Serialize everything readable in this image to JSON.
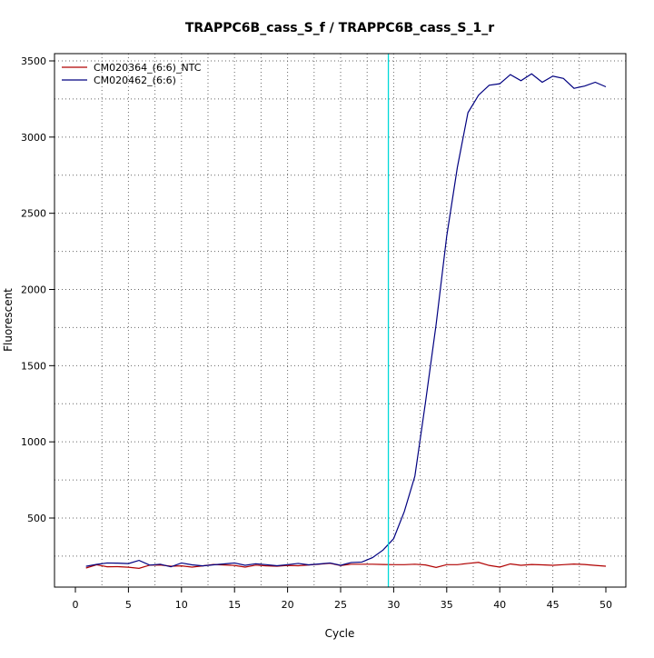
{
  "chart_data": {
    "type": "line",
    "title": "TRAPPC6B_cass_S_f / TRAPPC6B_cass_S_1_r",
    "xlabel": "Cycle",
    "ylabel": "Fluorescent",
    "xlim": [
      0,
      50
    ],
    "ylim": [
      0,
      3500
    ],
    "x_ticks": [
      0,
      5,
      10,
      15,
      20,
      25,
      30,
      35,
      40,
      45,
      50
    ],
    "y_ticks": [
      500,
      1000,
      1500,
      2000,
      2500,
      3000,
      3500
    ],
    "grid": true,
    "legend_position": "top-left",
    "threshold_x": 29.5,
    "threshold_color": "#00d8d8",
    "series": [
      {
        "name": "CM020364_(6:6)_NTC",
        "color": "#b00000",
        "x": [
          1,
          2,
          3,
          4,
          5,
          6,
          7,
          8,
          9,
          10,
          11,
          12,
          13,
          14,
          15,
          16,
          17,
          18,
          19,
          20,
          21,
          22,
          23,
          24,
          25,
          26,
          27,
          28,
          29,
          30,
          31,
          32,
          33,
          34,
          35,
          36,
          37,
          38,
          39,
          40,
          41,
          42,
          43,
          44,
          45,
          46,
          47,
          48,
          49,
          50
        ],
        "values": [
          172,
          193,
          180,
          181,
          177,
          170,
          191,
          192,
          184,
          186,
          178,
          186,
          195,
          192,
          189,
          178,
          191,
          186,
          184,
          189,
          187,
          192,
          197,
          203,
          188,
          197,
          197,
          197,
          195,
          194,
          194,
          197,
          192,
          176,
          194,
          194,
          202,
          209,
          189,
          178,
          199,
          190,
          195,
          193,
          190,
          194,
          198,
          195,
          189,
          184
        ]
      },
      {
        "name": "CM020462_(6:6)",
        "color": "#000080",
        "x": [
          1,
          2,
          3,
          4,
          5,
          6,
          7,
          8,
          9,
          10,
          11,
          12,
          13,
          14,
          15,
          16,
          17,
          18,
          19,
          20,
          21,
          22,
          23,
          24,
          25,
          26,
          27,
          28,
          29,
          30,
          31,
          32,
          33,
          34,
          35,
          36,
          37,
          38,
          39,
          40,
          41,
          42,
          43,
          44,
          45,
          46,
          47,
          48,
          49,
          50
        ],
        "values": [
          183,
          196,
          205,
          204,
          201,
          222,
          191,
          197,
          180,
          205,
          193,
          186,
          193,
          199,
          205,
          190,
          200,
          194,
          187,
          194,
          202,
          193,
          199,
          205,
          190,
          208,
          211,
          240,
          290,
          365,
          542,
          775,
          1260,
          1770,
          2350,
          2800,
          3160,
          3275,
          3340,
          3350,
          3410,
          3370,
          3415,
          3360,
          3400,
          3385,
          3320,
          3335,
          3360,
          3330
        ]
      }
    ]
  }
}
